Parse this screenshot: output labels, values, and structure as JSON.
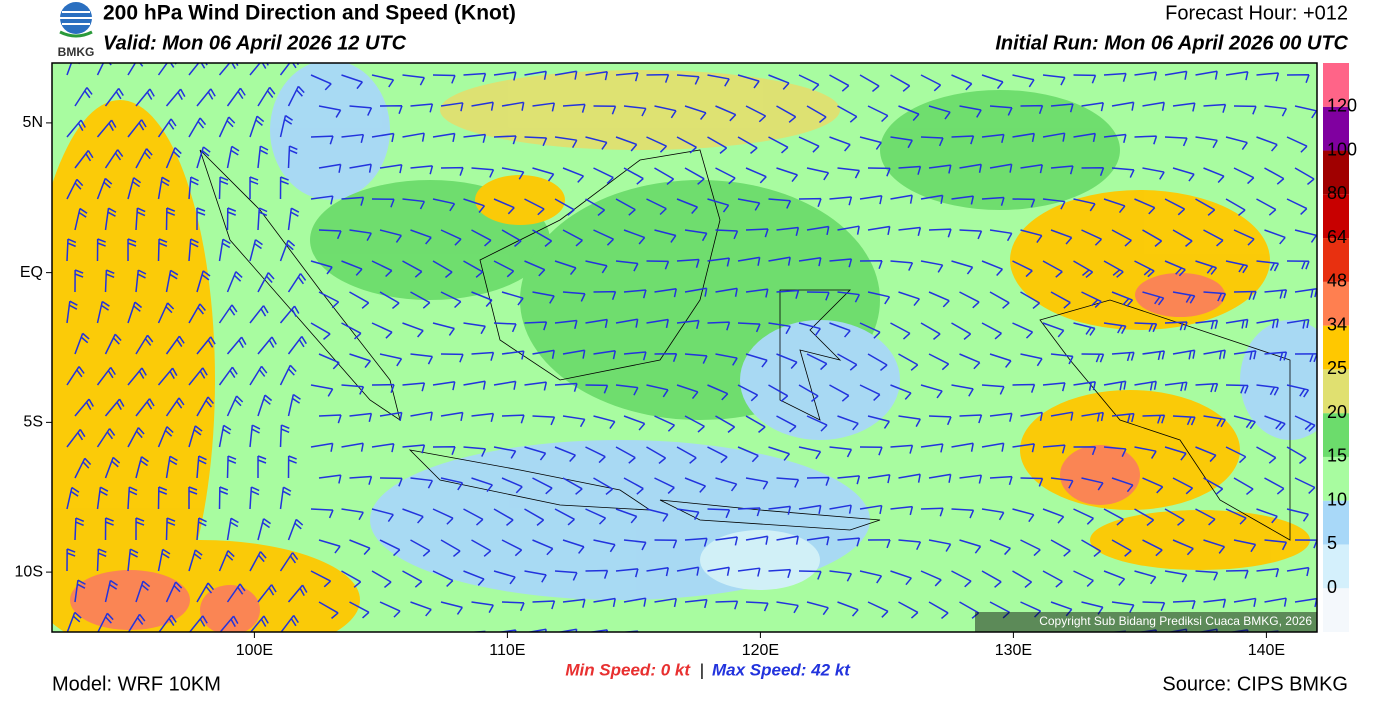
{
  "header": {
    "title": "200 hPa Wind Direction and Speed (Knot)",
    "valid": "Valid: Mon 06 April 2026 12 UTC",
    "forecast_hour": "Forecast Hour: +012",
    "initial_run": "Initial Run: Mon 06 April 2026 00 UTC",
    "logo": "BMKG"
  },
  "map": {
    "xlim": [
      92,
      142
    ],
    "ylim": [
      -12,
      7
    ],
    "xticks": [
      {
        "value": 100,
        "label": "100E"
      },
      {
        "value": 110,
        "label": "110E"
      },
      {
        "value": 120,
        "label": "120E"
      },
      {
        "value": 130,
        "label": "130E"
      },
      {
        "value": 140,
        "label": "140E"
      }
    ],
    "yticks": [
      {
        "value": 5,
        "label": "5N"
      },
      {
        "value": 0,
        "label": "EQ"
      },
      {
        "value": -5,
        "label": "5S"
      },
      {
        "value": -10,
        "label": "10S"
      }
    ],
    "copyright": "Copyright Sub Bidang Prediksi Cuaca BMKG, 2026"
  },
  "colorbar": {
    "levels": [
      0,
      5,
      10,
      15,
      20,
      25,
      34,
      48,
      64,
      80,
      100,
      120
    ],
    "colors": [
      "#f4f8fc",
      "#d4f0fc",
      "#a8d8f8",
      "#a8fca0",
      "#6cdc6c",
      "#e0e070",
      "#ffc800",
      "#ff7f50",
      "#e83010",
      "#c80000",
      "#a00000",
      "#8000a0",
      "#ff6488"
    ]
  },
  "footer": {
    "min_speed": "Min Speed:  0 kt",
    "separator": "|",
    "max_speed": "Max Speed:  42 kt",
    "model": "Model: WRF 10KM",
    "source": "Source: CIPS BMKG"
  }
}
